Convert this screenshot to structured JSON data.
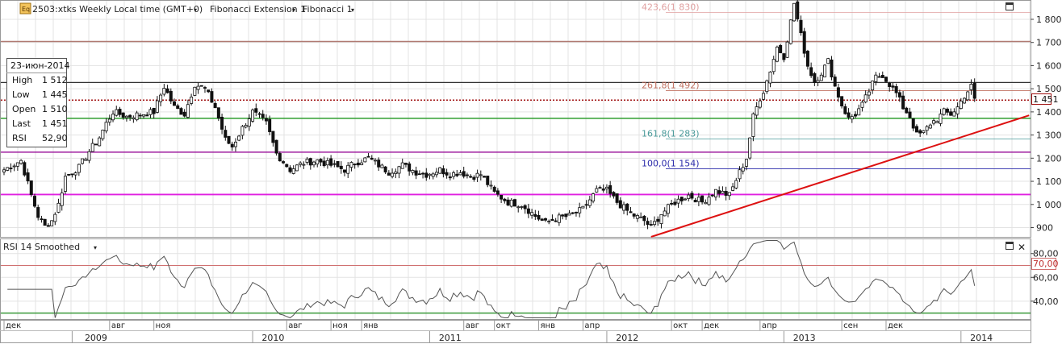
{
  "header": {
    "icon": "eq-icon",
    "icon_text": "Eq",
    "title": "2503:xtks Weekly Local time (GMT+0)",
    "indicator_1": "Fibonacci Extension 1",
    "indicator_2": "Fibonacci 1"
  },
  "info_box": {
    "date": "23-июн-2014",
    "rows": [
      {
        "label": "High",
        "value": "1 512"
      },
      {
        "label": "Low",
        "value": "1 445"
      },
      {
        "label": "Open",
        "value": "1 510"
      },
      {
        "label": "Last",
        "value": "1 451"
      },
      {
        "label": "RSI",
        "value": "52,90"
      }
    ]
  },
  "last_price_label": "1 451",
  "rsi_panel": {
    "title": "RSI 14 Smoothed",
    "level_label": "70,00"
  },
  "colors": {
    "grid": "#e3e3e3",
    "candle": "#111111",
    "hline_dark": "#333333",
    "hline_brown": "#b07a72",
    "hline_green": "#2f9e2f",
    "hline_purple": "#a020a0",
    "hline_magenta": "#e020e0",
    "dotted": "#a01010",
    "trend": "#dd1111",
    "rsi_line": "#555555",
    "rsi_upper": "#d07070",
    "rsi_lower": "#3a9a3a",
    "fib_423": "#e0a0a0",
    "fib_261": "#c07060",
    "fib_161": "#4a9a9a",
    "fib_100": "#2a2aaa"
  },
  "chart_data": [
    {
      "type": "candlestick",
      "title": "2503:xtks Weekly Local time (GMT+0)",
      "ylim": [
        860,
        1880
      ],
      "y_ticks": [
        "900",
        "1 000",
        "1 100",
        "1 200",
        "1 300",
        "1 400",
        "1 500",
        "1 600",
        "1 700",
        "1 800"
      ],
      "y_tick_values": [
        900,
        1000,
        1100,
        1200,
        1300,
        1400,
        1500,
        1600,
        1700,
        1800
      ],
      "month_labels": [
        "дек",
        "авг",
        "ноя",
        "авг",
        "ноя",
        "янв",
        "авг",
        "окт",
        "янв",
        "апр",
        "окт",
        "дек",
        "апр",
        "сен",
        "дек"
      ],
      "month_label_idx": [
        0,
        31,
        44,
        83,
        96,
        105,
        135,
        144,
        157,
        170,
        196,
        205,
        222,
        246,
        259
      ],
      "year_labels": [
        "2009",
        "2010",
        "2011",
        "2012",
        "2013",
        "2014"
      ],
      "year_label_idx": [
        27,
        79,
        131,
        183,
        235,
        287
      ],
      "horizontal_lines": [
        {
          "name": "resistance-dark",
          "value": 1527
        },
        {
          "name": "resistance-brown",
          "value": 1704
        },
        {
          "name": "support-green",
          "value": 1372
        },
        {
          "name": "support-purple",
          "value": 1226
        },
        {
          "name": "support-magenta",
          "value": 1043
        },
        {
          "name": "last-dotted",
          "value": 1451
        }
      ],
      "fibonacci_levels": [
        {
          "label": "423,6(1 830)",
          "value": 1830
        },
        {
          "label": "261,8(1 492)",
          "value": 1492
        },
        {
          "label": "161,8(1 283)",
          "value": 1283
        },
        {
          "label": "100,0(1 154)",
          "value": 1154
        }
      ],
      "trend_line": {
        "from": {
          "x": 190,
          "y": 860
        },
        "to": {
          "x": 301,
          "y": 1385
        }
      },
      "last_value": 1451
    },
    {
      "type": "line",
      "title": "RSI 14 Smoothed",
      "ylim": [
        25,
        92
      ],
      "y_ticks": [
        "40,00",
        "60,00",
        "80,00"
      ],
      "y_tick_values": [
        40,
        60,
        80
      ],
      "levels": [
        70,
        30
      ],
      "last_value": 52.9
    }
  ]
}
